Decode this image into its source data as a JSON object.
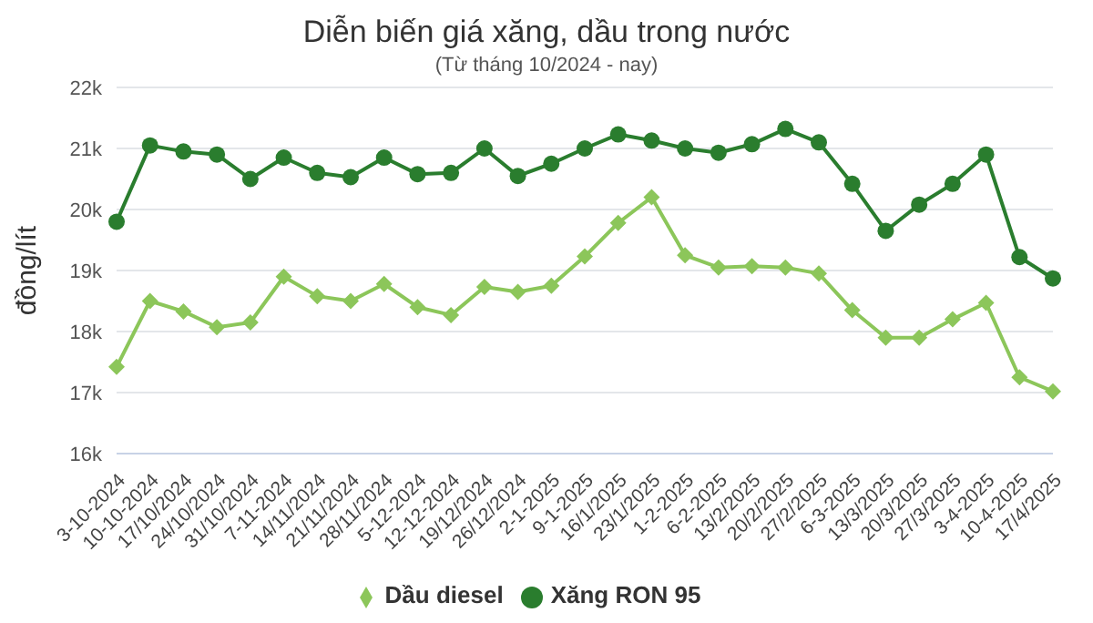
{
  "chart_data": {
    "type": "line",
    "title": "Diễn biến giá xăng, dầu trong nước",
    "subtitle": "(Từ tháng 10/2024 - nay)",
    "ylabel": "đồng/lít",
    "categories": [
      "3-10-2024",
      "10-10-2024",
      "17/10/2024",
      "24/10/2024",
      "31/10/2024",
      "7-11-2024",
      "14/11/2024",
      "21/11/2024",
      "28/11/2024",
      "5-12-2024",
      "12-12-2024",
      "19/12/2024",
      "26/12/2024",
      "2-1-2025",
      "9-1-2025",
      "16/1/2025",
      "23/1/2025",
      "1-2-2025",
      "6-2-2025",
      "13/2/2025",
      "20/2/2025",
      "27/2/2025",
      "6-3-2025",
      "13/3/2025",
      "20/3/2025",
      "27/3/2025",
      "3-4-2025",
      "10-4-2025",
      "17/4/2025"
    ],
    "series": [
      {
        "name": "Xăng RON 95",
        "color": "#2a7d2e",
        "marker": "circle",
        "values": [
          19800,
          21050,
          20950,
          20900,
          20500,
          20850,
          20600,
          20530,
          20850,
          20580,
          20600,
          21000,
          20550,
          20750,
          21000,
          21230,
          21130,
          21000,
          20930,
          21070,
          21320,
          21100,
          20420,
          19650,
          20080,
          20420,
          20900,
          19220,
          18870
        ]
      },
      {
        "name": "Dầu diesel",
        "color": "#8cc65a",
        "marker": "diamond",
        "values": [
          17420,
          18500,
          18330,
          18070,
          18150,
          18900,
          18580,
          18500,
          18780,
          18400,
          18270,
          18730,
          18650,
          18750,
          19230,
          19780,
          20200,
          19250,
          19050,
          19070,
          19050,
          18950,
          18350,
          17900,
          17900,
          18200,
          18470,
          17250,
          17020
        ]
      }
    ],
    "ylim": [
      16000,
      22000
    ],
    "yticks": [
      {
        "value": 16000,
        "label": "16k"
      },
      {
        "value": 17000,
        "label": "17k"
      },
      {
        "value": 18000,
        "label": "18k"
      },
      {
        "value": 19000,
        "label": "19k"
      },
      {
        "value": 20000,
        "label": "20k"
      },
      {
        "value": 21000,
        "label": "21k"
      },
      {
        "value": 22000,
        "label": "22k"
      }
    ],
    "grid": "y",
    "legend": "bottom"
  }
}
